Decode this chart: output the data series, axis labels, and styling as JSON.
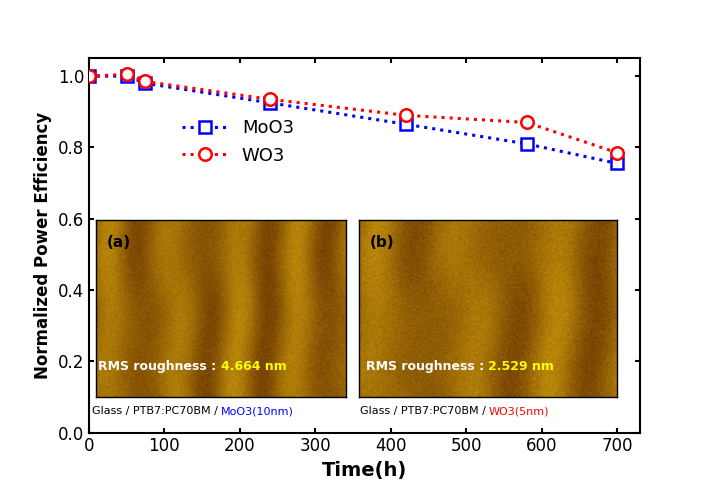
{
  "moo3_x": [
    0,
    50,
    75,
    240,
    420,
    580,
    700
  ],
  "moo3_y": [
    1.0,
    1.0,
    0.98,
    0.925,
    0.865,
    0.81,
    0.755
  ],
  "wo3_x": [
    0,
    50,
    75,
    240,
    420,
    580,
    700
  ],
  "wo3_y": [
    1.0,
    1.005,
    0.985,
    0.935,
    0.89,
    0.87,
    0.785
  ],
  "moo3_color": "#0000ff",
  "wo3_color": "#ff0000",
  "xlabel": "Time(h)",
  "ylabel": "Normalized Power Efficiency",
  "xlim": [
    0,
    730
  ],
  "ylim": [
    0.0,
    1.05
  ],
  "xticks": [
    0,
    100,
    200,
    300,
    400,
    500,
    600,
    700
  ],
  "yticks": [
    0.0,
    0.2,
    0.4,
    0.6,
    0.8,
    1.0
  ],
  "legend_moo3": "MoO3",
  "legend_wo3": "WO3",
  "caption_prefix": "Glass / PTB7:PC70BM / ",
  "caption_a_suffix": "MoO3(10nm)",
  "caption_b_suffix": "WO3(5nm)",
  "rms_prefix": "RMS roughness : ",
  "rms_a_value": "4.664 nm",
  "rms_b_value": "2.529 nm",
  "label_a": "(a)",
  "label_b": "(b)"
}
